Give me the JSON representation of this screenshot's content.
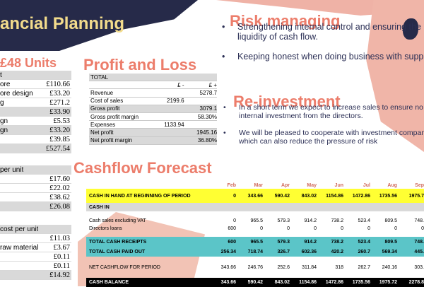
{
  "title": "ancial Planning",
  "heading_48": "48 Units",
  "heading_pl": "Profit and Loss",
  "heading_cf": "Cashflow Forecast",
  "heading_risk": "Risk managing",
  "heading_reinv": "Re-investment",
  "risk_bullets": [
    "Strengthening internal control and ensuring the liquidity of cash flow.",
    "Keeping honest when doing business with suppliers."
  ],
  "reinv_bullets": [
    "In a short term we expect to increase sales to ensure no more internal investment from the directors.",
    "We will be pleased to cooperate with investment companies, which can also reduce the pressure of risk"
  ],
  "left_tables": {
    "t1": {
      "header": "t",
      "rows": [
        {
          "label": "ore",
          "value": "£110.66",
          "grey": false
        },
        {
          "label": "ore design",
          "value": "£33.20",
          "grey": false
        },
        {
          "label": "g",
          "value": "£271.2",
          "grey": false
        },
        {
          "label": "",
          "value": "£33.90",
          "grey": true
        },
        {
          "label": "gn",
          "value": "£5.53",
          "grey": false
        },
        {
          "label": "gn",
          "value": "£33.20",
          "grey": true
        },
        {
          "label": "",
          "value": "£39.85",
          "grey": false
        },
        {
          "label": "",
          "value": "£527.54",
          "grey": true
        }
      ]
    },
    "t2": {
      "header": "per unit",
      "rows": [
        {
          "label": "",
          "value": "£17.60",
          "grey": false
        },
        {
          "label": "",
          "value": "£22.02",
          "grey": false
        },
        {
          "label": "",
          "value": "£38.62",
          "grey": false
        },
        {
          "label": "",
          "value": "£26.08",
          "grey": true
        }
      ]
    },
    "t3": {
      "header": "cost per unit",
      "rows": [
        {
          "label": "",
          "value": "£11.03",
          "grey": false
        },
        {
          "label": "raw material",
          "value": "£3.67",
          "grey": false
        },
        {
          "label": "",
          "value": "£0.11",
          "grey": false
        },
        {
          "label": "",
          "value": "£0.11",
          "grey": false
        },
        {
          "label": "",
          "value": "£14.92",
          "grey": true
        }
      ]
    }
  },
  "pl": {
    "rows": [
      {
        "c1": "TOTAL",
        "c2": "",
        "c3": "",
        "grey": true
      },
      {
        "c1": "",
        "c2": "£ -",
        "c3": "£ +",
        "grey": false
      },
      {
        "c1": "Revenue",
        "c2": "",
        "c3": "5278.7",
        "grey": false
      },
      {
        "c1": "Cost of sales",
        "c2": "2199.6",
        "c3": "",
        "grey": false
      },
      {
        "c1": "Gross profit",
        "c2": "",
        "c3": "3079.1",
        "grey": true
      },
      {
        "c1": "Gross profit margin",
        "c2": "",
        "c3": "58.30%",
        "grey": false
      },
      {
        "c1": "Expenses",
        "c2": "1133.94",
        "c3": "",
        "grey": false
      },
      {
        "c1": "Net profit",
        "c2": "",
        "c3": "1945.16",
        "grey": true
      },
      {
        "c1": "Net profit margin",
        "c2": "",
        "c3": "36.80%",
        "grey": true
      }
    ]
  },
  "cashflow": {
    "months": [
      "Feb",
      "Mar",
      "Apr",
      "May",
      "Jun",
      "Jul",
      "Aug",
      "Sep"
    ],
    "rows": [
      {
        "label": "CASH IN HAND AT BEGINNING OF PERIOD",
        "values": [
          "0",
          "343.66",
          "590.42",
          "843.02",
          "1154.86",
          "1472.86",
          "1735.56",
          "1975.7"
        ],
        "bg": "#ffff33",
        "color": "#000000",
        "bold": true,
        "h": 20
      },
      {
        "label": "CASH IN",
        "values": [
          "",
          "",
          "",
          "",
          "",
          "",
          "",
          ""
        ],
        "bg": "#d9d9d9",
        "color": "#000000",
        "bold": true,
        "h": 12
      },
      {
        "label": "",
        "values": [
          "",
          "",
          "",
          "",
          "",
          "",
          "",
          ""
        ],
        "bg": "transparent",
        "color": "#000000",
        "bold": false,
        "h": 8
      },
      {
        "label": "Cash sales excluding VAT",
        "values": [
          "0",
          "965.5",
          "579.3",
          "914.2",
          "738.2",
          "523.4",
          "809.5",
          "748."
        ],
        "bg": "transparent",
        "color": "#000000",
        "bold": false,
        "h": 11
      },
      {
        "label": "Directors loans",
        "values": [
          "600",
          "0",
          "0",
          "0",
          "0",
          "0",
          "0",
          "0"
        ],
        "bg": "transparent",
        "color": "#000000",
        "bold": false,
        "h": 11
      },
      {
        "label": "",
        "values": [
          "",
          "",
          "",
          "",
          "",
          "",
          "",
          ""
        ],
        "bg": "transparent",
        "color": "#000000",
        "bold": false,
        "h": 6
      },
      {
        "label": "TOTAL CASH RECEIPTS",
        "values": [
          "600",
          "965.5",
          "579.3",
          "914.2",
          "738.2",
          "523.4",
          "809.5",
          "748."
        ],
        "bg": "#5bc5c8",
        "color": "#000000",
        "bold": true,
        "h": 14
      },
      {
        "label": "TOTAL CASH PAID OUT",
        "values": [
          "256.34",
          "718.74",
          "326.7",
          "602.36",
          "420.2",
          "260.7",
          "569.34",
          "445."
        ],
        "bg": "#5bc5c8",
        "color": "#000000",
        "bold": true,
        "h": 14
      },
      {
        "label": "",
        "values": [
          "",
          "",
          "",
          "",
          "",
          "",
          "",
          ""
        ],
        "bg": "transparent",
        "color": "#000000",
        "bold": false,
        "h": 8
      },
      {
        "label": "NET CASHFLOW FOR PERIOD",
        "values": [
          "343.66",
          "246.76",
          "252.6",
          "311.84",
          "318",
          "262.7",
          "240.16",
          "303."
        ],
        "bg": "transparent",
        "color": "#000000",
        "bold": false,
        "h": 14
      },
      {
        "label": "",
        "values": [
          "",
          "",
          "",
          "",
          "",
          "",
          "",
          ""
        ],
        "bg": "transparent",
        "color": "#000000",
        "bold": false,
        "h": 8
      },
      {
        "label": "CASH BALANCE",
        "values": [
          "343.66",
          "590.42",
          "843.02",
          "1154.86",
          "1472.86",
          "1735.56",
          "1975.72",
          "2278.8"
        ],
        "bg": "#000000",
        "color": "#ffffff",
        "bold": true,
        "h": 13
      }
    ]
  },
  "colors": {
    "navy": "#262a49",
    "coral": "#ec7d6b",
    "title_yellow": "#f3dc8c",
    "teal": "#5bc5c8",
    "yellow": "#ffff33"
  }
}
